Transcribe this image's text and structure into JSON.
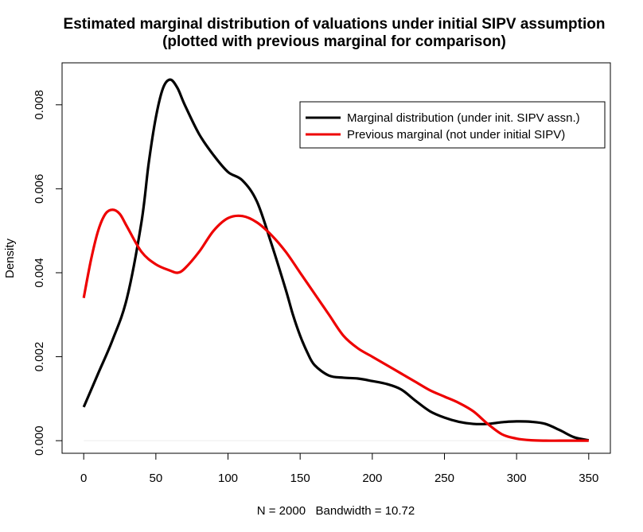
{
  "chart_data": {
    "type": "line",
    "title": "Estimated marginal distribution of valuations under initial SIPV assumption",
    "subtitle": "(plotted with previous marginal for comparison)",
    "xlabel": "N = 2000   Bandwidth = 10.72",
    "ylabel": "Density",
    "xlim": [
      -15,
      365
    ],
    "ylim": [
      -0.0003,
      0.009
    ],
    "x_ticks": [
      0,
      50,
      100,
      150,
      200,
      250,
      300,
      350
    ],
    "y_ticks": [
      0.0,
      0.002,
      0.004,
      0.006,
      0.008
    ],
    "x_tick_labels": [
      "0",
      "50",
      "100",
      "150",
      "200",
      "250",
      "300",
      "350"
    ],
    "y_tick_labels": [
      "0.000",
      "0.002",
      "0.004",
      "0.006",
      "0.008"
    ],
    "legend_position": "top-right",
    "grid": false,
    "series": [
      {
        "name": "Marginal distribution (under init. SIPV assn.)",
        "color": "#000000",
        "x": [
          0,
          10,
          20,
          30,
          40,
          45,
          50,
          55,
          60,
          65,
          70,
          80,
          90,
          100,
          110,
          120,
          130,
          140,
          145,
          150,
          155,
          160,
          170,
          180,
          190,
          200,
          210,
          220,
          230,
          240,
          250,
          260,
          270,
          280,
          290,
          300,
          310,
          320,
          330,
          340,
          350
        ],
        "y": [
          0.0008,
          0.0016,
          0.0024,
          0.0034,
          0.0052,
          0.0066,
          0.0077,
          0.0084,
          0.0086,
          0.0084,
          0.008,
          0.0073,
          0.0068,
          0.0064,
          0.0062,
          0.0057,
          0.0047,
          0.0036,
          0.003,
          0.0025,
          0.0021,
          0.0018,
          0.00155,
          0.0015,
          0.00148,
          0.00142,
          0.00135,
          0.00122,
          0.00095,
          0.0007,
          0.00055,
          0.00045,
          0.0004,
          0.0004,
          0.00044,
          0.00046,
          0.00045,
          0.0004,
          0.00025,
          8e-05,
          1e-05
        ]
      },
      {
        "name": "Previous marginal (not under initial SIPV)",
        "color": "#ee0000",
        "x": [
          0,
          5,
          10,
          15,
          20,
          25,
          30,
          40,
          50,
          60,
          65,
          70,
          80,
          90,
          100,
          110,
          120,
          130,
          140,
          150,
          160,
          170,
          180,
          190,
          200,
          210,
          220,
          230,
          240,
          250,
          260,
          270,
          280,
          290,
          300,
          310,
          320,
          330,
          340,
          350
        ],
        "y": [
          0.0034,
          0.0043,
          0.005,
          0.0054,
          0.0055,
          0.0054,
          0.0051,
          0.0045,
          0.0042,
          0.00405,
          0.004,
          0.0041,
          0.0045,
          0.005,
          0.0053,
          0.00535,
          0.0052,
          0.0049,
          0.0045,
          0.004,
          0.0035,
          0.003,
          0.0025,
          0.0022,
          0.002,
          0.0018,
          0.0016,
          0.0014,
          0.0012,
          0.00105,
          0.0009,
          0.0007,
          0.0004,
          0.00015,
          5e-05,
          1e-05,
          0.0,
          0.0,
          0.0,
          0.0
        ]
      }
    ]
  }
}
